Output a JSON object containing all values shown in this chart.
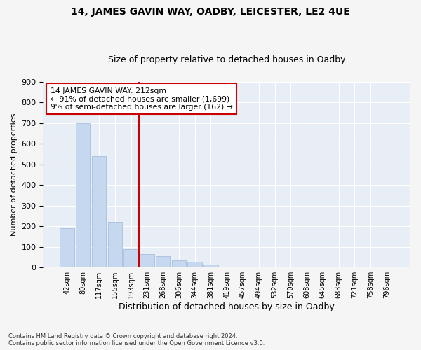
{
  "title1": "14, JAMES GAVIN WAY, OADBY, LEICESTER, LE2 4UE",
  "title2": "Size of property relative to detached houses in Oadby",
  "xlabel": "Distribution of detached houses by size in Oadby",
  "ylabel": "Number of detached properties",
  "footnote": "Contains HM Land Registry data © Crown copyright and database right 2024.\nContains public sector information licensed under the Open Government Licence v3.0.",
  "bar_labels": [
    "42sqm",
    "80sqm",
    "117sqm",
    "155sqm",
    "193sqm",
    "231sqm",
    "268sqm",
    "306sqm",
    "344sqm",
    "381sqm",
    "419sqm",
    "457sqm",
    "494sqm",
    "532sqm",
    "570sqm",
    "608sqm",
    "645sqm",
    "683sqm",
    "721sqm",
    "758sqm",
    "796sqm"
  ],
  "bar_values": [
    190,
    700,
    540,
    220,
    90,
    65,
    55,
    35,
    28,
    15,
    3,
    3,
    1,
    1,
    1,
    0,
    0,
    0,
    0,
    5,
    0
  ],
  "bar_color": "#c5d8f0",
  "bar_edgecolor": "#a0b8d8",
  "vline_color": "#cc0000",
  "annotation_text": "14 JAMES GAVIN WAY: 212sqm\n← 91% of detached houses are smaller (1,699)\n9% of semi-detached houses are larger (162) →",
  "annotation_box_color": "#ffffff",
  "annotation_box_edgecolor": "#cc0000",
  "ylim": [
    0,
    900
  ],
  "yticks": [
    0,
    100,
    200,
    300,
    400,
    500,
    600,
    700,
    800,
    900
  ],
  "background_color": "#e8eef5",
  "grid_color": "#ffffff",
  "fig_background": "#f5f5f5",
  "title1_fontsize": 10,
  "title2_fontsize": 9
}
